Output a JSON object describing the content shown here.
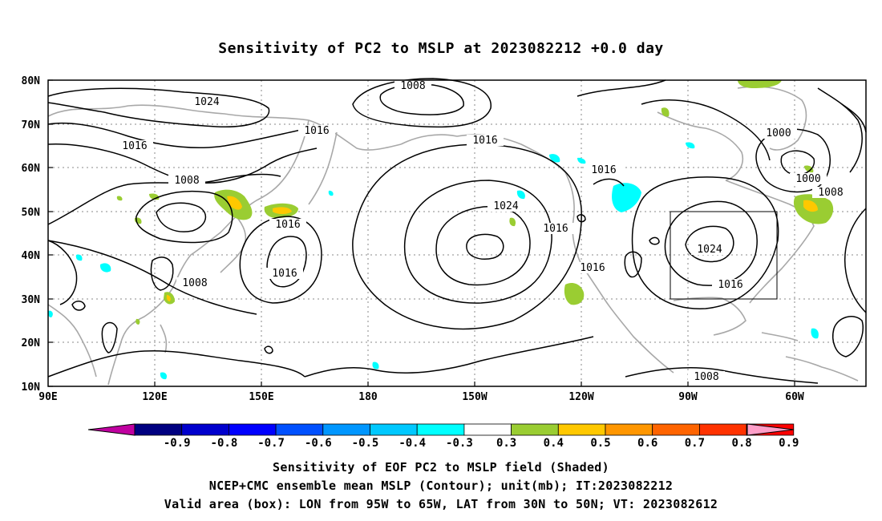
{
  "title": "Sensitivity of PC2 to MSLP at 2023082212 +0.0 day",
  "lat_labels": [
    "80N",
    "70N",
    "60N",
    "50N",
    "40N",
    "30N",
    "20N",
    "10N"
  ],
  "lon_labels": [
    "90E",
    "120E",
    "150E",
    "180",
    "150W",
    "120W",
    "90W",
    "60W"
  ],
  "colorbar": {
    "labels": [
      "-0.9",
      "-0.8",
      "-0.7",
      "-0.6",
      "-0.5",
      "-0.4",
      "-0.3",
      "0.3",
      "0.4",
      "0.5",
      "0.6",
      "0.7",
      "0.8",
      "0.9"
    ],
    "colors": [
      "#000080",
      "#0000cd",
      "#0000ff",
      "#0050ff",
      "#0096ff",
      "#00c8ff",
      "#00ffff",
      "#ffffff",
      "#9acd32",
      "#ffc800",
      "#ff9600",
      "#ff6400",
      "#ff3200",
      "#ff0000"
    ],
    "low_end_color": "#c000a0",
    "high_end_color": "#ff9ec8"
  },
  "contour_labels": [
    "1008",
    "1024",
    "1016",
    "1016",
    "1016",
    "1008",
    "1016",
    "1016",
    "1008",
    "1024",
    "1016",
    "1016",
    "1016",
    "1000",
    "1000",
    "1008",
    "1024",
    "1016",
    "1008"
  ],
  "valid_box": {
    "lon_from": "95W",
    "lon_to": "65W",
    "lat_from": "30N",
    "lat_to": "50N"
  },
  "captions": [
    "Sensitivity of EOF PC2 to MSLP field (Shaded)",
    "NCEP+CMC ensemble mean MSLP (Contour); unit(mb); IT:2023082212",
    "Valid area (box): LON from 95W to 65W, LAT from 30N to 50N; VT: 2023082612"
  ]
}
